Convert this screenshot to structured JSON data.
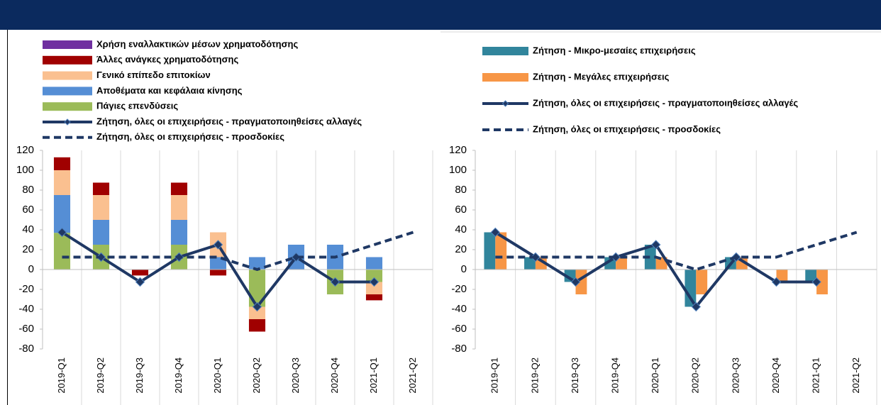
{
  "chart_data": [
    {
      "type": "bar",
      "stacked": true,
      "categories": [
        "2019-Q1",
        "2019-Q2",
        "2019-Q3",
        "2019-Q4",
        "2020-Q1",
        "2020-Q2",
        "2020-Q3",
        "2020-Q4",
        "2021-Q1",
        "2021-Q2"
      ],
      "ylim": [
        -80,
        120
      ],
      "yticks": [
        -80,
        -60,
        -40,
        -20,
        0,
        20,
        40,
        60,
        80,
        100,
        120
      ],
      "series": [
        {
          "name": "Χρήση εναλλακτικών μέσων χρηματοδότησης",
          "color": "#7030a0",
          "values": [
            0,
            0,
            0,
            0,
            0,
            0,
            0,
            0,
            0,
            null
          ]
        },
        {
          "name": "Άλλες ανάγκες χρηματοδότησης",
          "color": "#a00000",
          "values": [
            13,
            12.5,
            -6,
            12.5,
            -6,
            -12.5,
            0,
            0,
            -6,
            null
          ]
        },
        {
          "name": "Γενικό επίπεδο επιτοκίων",
          "color": "#fac090",
          "values": [
            25,
            25,
            0,
            25,
            25,
            -12.5,
            0,
            0,
            -12.5,
            null
          ]
        },
        {
          "name": "Αποθέματα και κεφάλαια κίνησης",
          "color": "#558ed5",
          "values": [
            38,
            25,
            0,
            25,
            12.5,
            12.5,
            25,
            25,
            12.5,
            null
          ]
        },
        {
          "name": "Πάγιες επενδύσεις",
          "color": "#9bbb59",
          "values": [
            37,
            25,
            0,
            25,
            0,
            -37.5,
            0,
            -25,
            -12.5,
            null
          ]
        },
        {
          "name": "Ζήτηση, όλες οι επιχειρήσεις - πραγματοποιηθείσες αλλαγές",
          "type": "line",
          "color": "#1f3864",
          "marker": "diamond",
          "values": [
            37.5,
            12.5,
            -12.5,
            12.5,
            25,
            -37.5,
            12.5,
            -12.5,
            -12.5,
            null
          ]
        },
        {
          "name": "Ζήτηση, όλες οι επιχειρήσεις - προσδοκίες",
          "type": "line",
          "color": "#1f3864",
          "dashed": true,
          "values": [
            12.5,
            12.5,
            12.5,
            12.5,
            12.5,
            0,
            12.5,
            12.5,
            25,
            37.5
          ]
        }
      ]
    },
    {
      "type": "bar",
      "stacked": false,
      "categories": [
        "2019-Q1",
        "2019-Q2",
        "2019-Q3",
        "2019-Q4",
        "2020-Q1",
        "2020-Q2",
        "2020-Q3",
        "2020-Q4",
        "2021-Q1",
        "2021-Q2"
      ],
      "ylim": [
        -80,
        120
      ],
      "yticks": [
        -80,
        -60,
        -40,
        -20,
        0,
        20,
        40,
        60,
        80,
        100,
        120
      ],
      "series": [
        {
          "name": "Ζήτηση - Μικρο-μεσαίες επιχειρήσεις",
          "color": "#31859c",
          "values": [
            37.5,
            12.5,
            -12.5,
            12.5,
            25,
            -37.5,
            12.5,
            0,
            -12.5,
            null
          ]
        },
        {
          "name": "Ζήτηση - Μεγάλες επιχειρήσεις",
          "color": "#f79646",
          "values": [
            37.5,
            12.5,
            -25,
            12.5,
            12.5,
            -25,
            12.5,
            -12.5,
            -25,
            null
          ]
        },
        {
          "name": "Ζήτηση, όλες οι επιχειρήσεις - πραγματοποιηθείσες αλλαγές",
          "type": "line",
          "color": "#1f3864",
          "marker": "diamond",
          "values": [
            37.5,
            12.5,
            -12.5,
            12.5,
            25,
            -37.5,
            12.5,
            -12.5,
            -12.5,
            null
          ]
        },
        {
          "name": "Ζήτηση, όλες οι επιχειρήσεις - προσδοκίες",
          "type": "line",
          "color": "#1f3864",
          "dashed": true,
          "values": [
            12.5,
            12.5,
            12.5,
            12.5,
            12.5,
            0,
            12.5,
            12.5,
            25,
            37.5
          ]
        }
      ]
    }
  ]
}
